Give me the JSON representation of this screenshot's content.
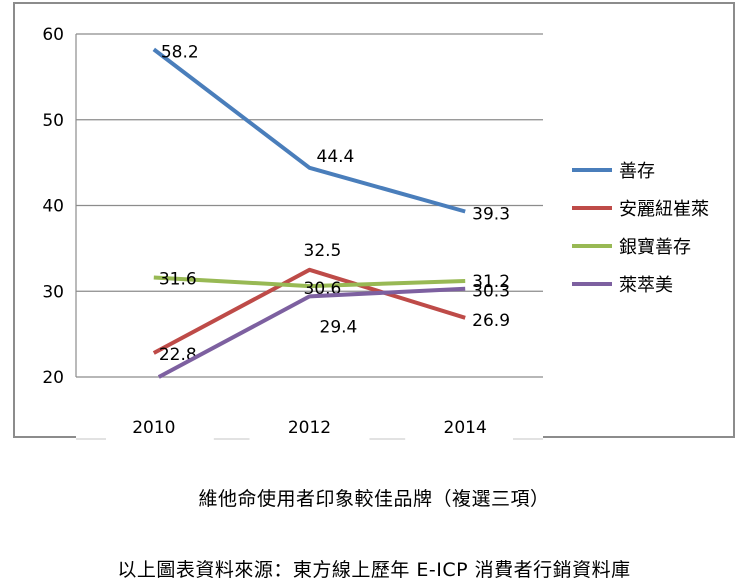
{
  "chart_data": {
    "type": "line",
    "categories": [
      "2010",
      "2012",
      "2014"
    ],
    "ylim": [
      20,
      60
    ],
    "yticks": [
      20,
      30,
      40,
      50,
      60
    ],
    "grid": true,
    "legend_position": "right",
    "series": [
      {
        "name": "善存",
        "color": "#4a7ebb",
        "values": [
          58.2,
          44.4,
          39.3
        ],
        "labels": [
          "58.2",
          "44.4",
          "39.3"
        ]
      },
      {
        "name": "安麗紐崔萊",
        "color": "#be4b48",
        "values": [
          22.8,
          32.5,
          26.9
        ],
        "labels": [
          "22.8",
          "32.5",
          "26.9"
        ]
      },
      {
        "name": "銀寶善存",
        "color": "#98b954",
        "values": [
          31.6,
          30.6,
          31.2
        ],
        "labels": [
          "31.6",
          "30.6",
          "31.2"
        ]
      },
      {
        "name": "萊萃美",
        "color": "#7d60a0",
        "values": [
          null,
          29.4,
          30.3
        ],
        "labels": [
          "",
          "29.4",
          "30.3"
        ]
      }
    ]
  },
  "captions": {
    "subtitle": "維他命使用者印象較佳品牌（複選三項）",
    "source": "以上圖表資料來源：東方線上歷年 E-ICP 消費者行銷資料庫"
  }
}
